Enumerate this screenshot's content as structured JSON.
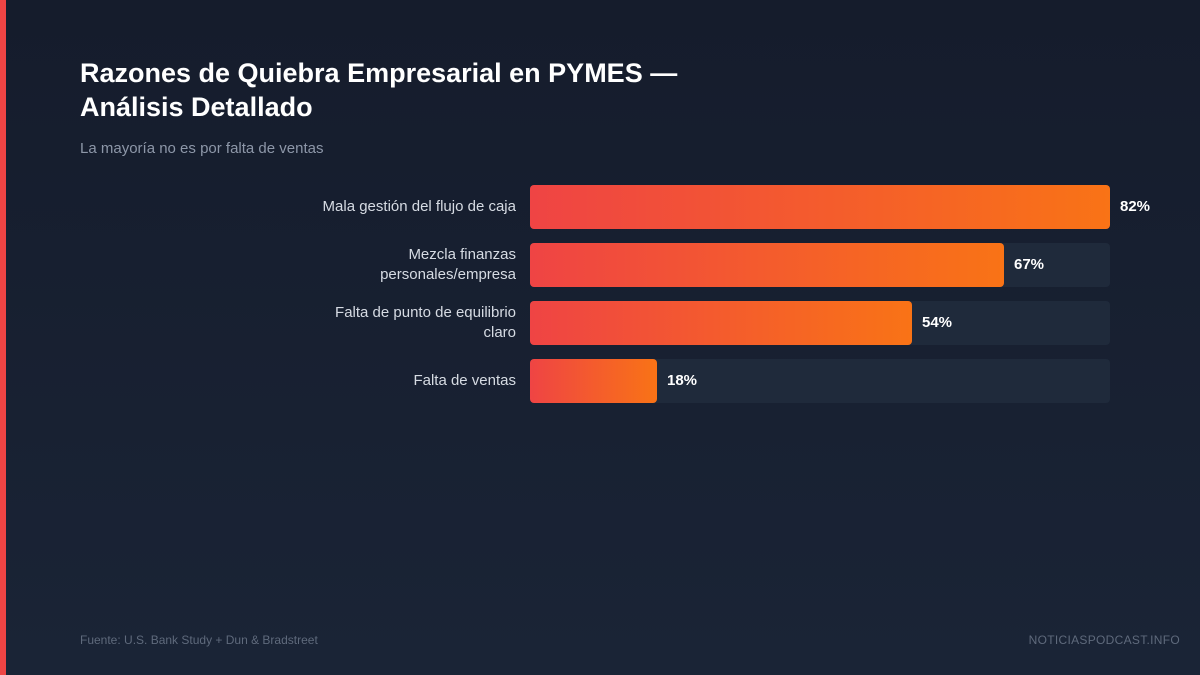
{
  "chart_data": {
    "type": "bar",
    "orientation": "horizontal",
    "title": "Razones de Quiebra Empresarial en PYMES — Análisis Detallado",
    "subtitle": "La mayoría no es por falta de ventas",
    "categories": [
      "Mala gestión del flujo de caja",
      "Mezcla finanzas personales/empresa",
      "Falta de punto de equilibrio claro",
      "Falta de ventas"
    ],
    "values": [
      82,
      67,
      54,
      18
    ],
    "value_labels": [
      "82%",
      "67%",
      "54%",
      "18%"
    ],
    "unit": "%",
    "xlim": [
      0,
      82
    ],
    "grid": false,
    "legend": "none",
    "colors": {
      "bar_start": "#ef4444",
      "bar_end": "#f97316",
      "track": "#1f2a3b",
      "accent": "#ef4444"
    }
  },
  "footer": {
    "source": "Fuente: U.S. Bank Study + Dun & Bradstreet",
    "brand": "NOTICIASPODCAST.INFO"
  }
}
